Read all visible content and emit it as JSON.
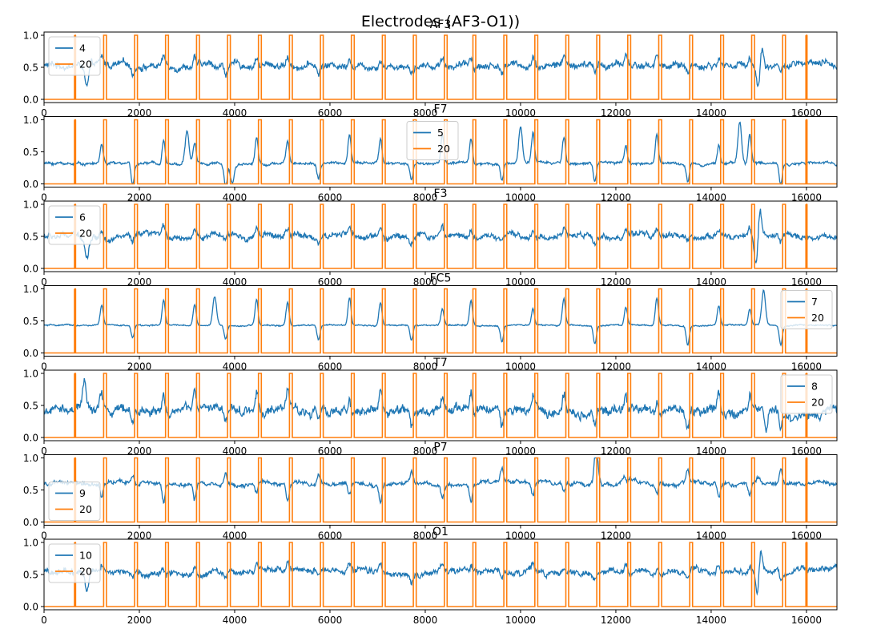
{
  "figure": {
    "suptitle": "Electrodes (AF3-O1))"
  },
  "colors": {
    "signal": "#1f77b4",
    "marker": "#ff7f0e",
    "axes": "#000000",
    "background": "#ffffff"
  },
  "chart_data": [
    {
      "type": "line",
      "title": "AF3",
      "xlim": [
        0,
        16640
      ],
      "ylim": [
        -0.05,
        1.05
      ],
      "xticks": [
        0,
        2000,
        4000,
        6000,
        8000,
        10000,
        12000,
        14000,
        16000
      ],
      "yticks": [
        0.0,
        0.5,
        1.0
      ],
      "xtick_labels": [
        "0",
        "2000",
        "4000",
        "6000",
        "8000",
        "10000",
        "12000",
        "14000",
        "16000"
      ],
      "ytick_labels": [
        "0.0",
        "0.5",
        "1.0"
      ],
      "legend_placement": "upper-left",
      "grid": false,
      "series": [
        {
          "name": "4",
          "baseline": 0.53,
          "noise": 0.05,
          "spike_scale": 0.18,
          "spikes": [
            {
              "x": 900,
              "v": -0.35
            },
            {
              "x": 15050,
              "v": 0.45
            },
            {
              "x": 15000,
              "v": -0.5
            }
          ]
        },
        {
          "name": "20",
          "pulse_starts": [
            1250,
            1900,
            2550,
            3200,
            3850,
            4500,
            5150,
            5800,
            6450,
            7100,
            7750,
            8400,
            9000,
            9650,
            10300,
            10950,
            11600,
            12250,
            12900,
            13550,
            14200,
            14850,
            15500
          ],
          "pulse_width": 60,
          "single_events": [
            650,
            16000
          ]
        }
      ]
    },
    {
      "type": "line",
      "title": "F7",
      "xlim": [
        0,
        16640
      ],
      "ylim": [
        -0.05,
        1.05
      ],
      "xticks": [
        0,
        2000,
        4000,
        6000,
        8000,
        10000,
        12000,
        14000,
        16000
      ],
      "yticks": [
        0.0,
        0.5,
        1.0
      ],
      "xtick_labels": [
        "0",
        "2000",
        "4000",
        "6000",
        "8000",
        "10000",
        "12000",
        "14000",
        "16000"
      ],
      "ytick_labels": [
        "0.0",
        "0.5",
        "1.0"
      ],
      "legend_placement": "upper-center",
      "grid": false,
      "series": [
        {
          "name": "5",
          "baseline": 0.32,
          "noise": 0.02,
          "spike_scale": 0.5,
          "spikes": [
            {
              "x": 3000,
              "v": 0.5
            },
            {
              "x": 3950,
              "v": -0.3
            },
            {
              "x": 14600,
              "v": 0.65
            },
            {
              "x": 10000,
              "v": 0.6
            }
          ]
        },
        {
          "name": "20",
          "pulse_starts": [
            1250,
            1900,
            2550,
            3200,
            3850,
            4500,
            5150,
            5800,
            6450,
            7100,
            7750,
            8400,
            9000,
            9650,
            10300,
            10950,
            11600,
            12250,
            12900,
            13550,
            14200,
            14850,
            15500
          ],
          "pulse_width": 60,
          "single_events": [
            650,
            16000
          ]
        }
      ]
    },
    {
      "type": "line",
      "title": "F3",
      "xlim": [
        0,
        16640
      ],
      "ylim": [
        -0.05,
        1.05
      ],
      "xticks": [
        0,
        2000,
        4000,
        6000,
        8000,
        10000,
        12000,
        14000,
        16000
      ],
      "yticks": [
        0.0,
        0.5,
        1.0
      ],
      "xtick_labels": [
        "0",
        "2000",
        "4000",
        "6000",
        "8000",
        "10000",
        "12000",
        "14000",
        "16000"
      ],
      "ytick_labels": [
        "0.0",
        "0.5",
        "1.0"
      ],
      "legend_placement": "upper-left",
      "grid": false,
      "series": [
        {
          "name": "6",
          "baseline": 0.5,
          "noise": 0.045,
          "spike_scale": 0.16,
          "spikes": [
            {
              "x": 900,
              "v": -0.3
            },
            {
              "x": 15020,
              "v": 0.48
            },
            {
              "x": 14950,
              "v": -0.48
            }
          ]
        },
        {
          "name": "20",
          "pulse_starts": [
            1250,
            1900,
            2550,
            3200,
            3850,
            4500,
            5150,
            5800,
            6450,
            7100,
            7750,
            8400,
            9000,
            9650,
            10300,
            10950,
            11600,
            12250,
            12900,
            13550,
            14200,
            14850,
            15500
          ],
          "pulse_width": 60,
          "single_events": [
            650,
            16000
          ]
        }
      ]
    },
    {
      "type": "line",
      "title": "FC5",
      "xlim": [
        0,
        16640
      ],
      "ylim": [
        -0.05,
        1.05
      ],
      "xticks": [
        0,
        2000,
        4000,
        6000,
        8000,
        10000,
        12000,
        14000,
        16000
      ],
      "yticks": [
        0.0,
        0.5,
        1.0
      ],
      "xtick_labels": [
        "0",
        "2000",
        "4000",
        "6000",
        "8000",
        "10000",
        "12000",
        "14000",
        "16000"
      ],
      "ytick_labels": [
        "0.0",
        "0.5",
        "1.0"
      ],
      "legend_placement": "upper-right",
      "grid": false,
      "series": [
        {
          "name": "7",
          "baseline": 0.43,
          "noise": 0.01,
          "spike_scale": 0.45,
          "spikes": [
            {
              "x": 3580,
              "v": 0.45
            },
            {
              "x": 4150,
              "v": 0.4
            },
            {
              "x": 4150,
              "v": -0.4
            },
            {
              "x": 15100,
              "v": 0.55
            }
          ]
        },
        {
          "name": "20",
          "pulse_starts": [
            1250,
            1900,
            2550,
            3200,
            3850,
            4500,
            5150,
            5800,
            6450,
            7100,
            7750,
            8400,
            9000,
            9650,
            10300,
            10950,
            11600,
            12250,
            12900,
            13550,
            14200,
            14850,
            15500
          ],
          "pulse_width": 60,
          "single_events": [
            650,
            16000
          ]
        }
      ]
    },
    {
      "type": "line",
      "title": "T7",
      "xlim": [
        0,
        16640
      ],
      "ylim": [
        -0.05,
        1.05
      ],
      "xticks": [
        0,
        2000,
        4000,
        6000,
        8000,
        10000,
        12000,
        14000,
        16000
      ],
      "yticks": [
        0.0,
        0.5,
        1.0
      ],
      "xtick_labels": [
        "0",
        "2000",
        "4000",
        "6000",
        "8000",
        "10000",
        "12000",
        "14000",
        "16000"
      ],
      "ytick_labels": [
        "0.0",
        "0.5",
        "1.0"
      ],
      "legend_placement": "upper-right",
      "grid": false,
      "series": [
        {
          "name": "8",
          "baseline": 0.42,
          "noise": 0.07,
          "spike_scale": 0.35,
          "spikes": [
            {
              "x": 850,
              "v": 0.5
            },
            {
              "x": 15150,
              "v": -0.4
            }
          ]
        },
        {
          "name": "20",
          "pulse_starts": [
            1250,
            1900,
            2550,
            3200,
            3850,
            4500,
            5150,
            5800,
            6450,
            7100,
            7750,
            8400,
            9000,
            9650,
            10300,
            10950,
            11600,
            12250,
            12900,
            13550,
            14200,
            14850,
            15500
          ],
          "pulse_width": 60,
          "single_events": [
            650,
            16000
          ]
        }
      ]
    },
    {
      "type": "line",
      "title": "P7",
      "xlim": [
        0,
        16640
      ],
      "ylim": [
        -0.05,
        1.05
      ],
      "xticks": [
        0,
        2000,
        4000,
        6000,
        8000,
        10000,
        12000,
        14000,
        16000
      ],
      "yticks": [
        0.0,
        0.5,
        1.0
      ],
      "xtick_labels": [
        "0",
        "2000",
        "4000",
        "6000",
        "8000",
        "10000",
        "12000",
        "14000",
        "16000"
      ],
      "ytick_labels": [
        "0.0",
        "0.5",
        "1.0"
      ],
      "legend_placement": "lower-left",
      "grid": false,
      "series": [
        {
          "name": "9",
          "baseline": 0.6,
          "noise": 0.03,
          "spike_scale": -0.3,
          "spikes": [
            {
              "x": 11600,
              "v": 0.4
            },
            {
              "x": 12200,
              "v": 0.25
            },
            {
              "x": 15000,
              "v": 0.1
            }
          ]
        },
        {
          "name": "20",
          "pulse_starts": [
            1250,
            1900,
            2550,
            3200,
            3850,
            4500,
            5150,
            5800,
            6450,
            7100,
            7750,
            8400,
            9000,
            9650,
            10300,
            10950,
            11600,
            12250,
            12900,
            13550,
            14200,
            14850,
            15500
          ],
          "pulse_width": 60,
          "single_events": [
            650,
            16000
          ]
        }
      ]
    },
    {
      "type": "line",
      "title": "O1",
      "xlim": [
        0,
        16640
      ],
      "ylim": [
        -0.05,
        1.05
      ],
      "xticks": [
        0,
        2000,
        4000,
        6000,
        8000,
        10000,
        12000,
        14000,
        16000
      ],
      "yticks": [
        0.0,
        0.5,
        1.0
      ],
      "xtick_labels": [
        "0",
        "2000",
        "4000",
        "6000",
        "8000",
        "10000",
        "12000",
        "14000",
        "16000"
      ],
      "ytick_labels": [
        "0.0",
        "0.5",
        "1.0"
      ],
      "legend_placement": "upper-left",
      "grid": false,
      "series": [
        {
          "name": "10",
          "baseline": 0.54,
          "noise": 0.045,
          "spike_scale": 0.15,
          "spikes": [
            {
              "x": 900,
              "v": -0.3
            },
            {
              "x": 15030,
              "v": 0.45
            },
            {
              "x": 14980,
              "v": -0.5
            }
          ]
        },
        {
          "name": "20",
          "pulse_starts": [
            1250,
            1900,
            2550,
            3200,
            3850,
            4500,
            5150,
            5800,
            6450,
            7100,
            7750,
            8400,
            9000,
            9650,
            10300,
            10950,
            11600,
            12250,
            12900,
            13550,
            14200,
            14850,
            15500
          ],
          "pulse_width": 60,
          "single_events": [
            650,
            16000
          ]
        }
      ]
    }
  ]
}
